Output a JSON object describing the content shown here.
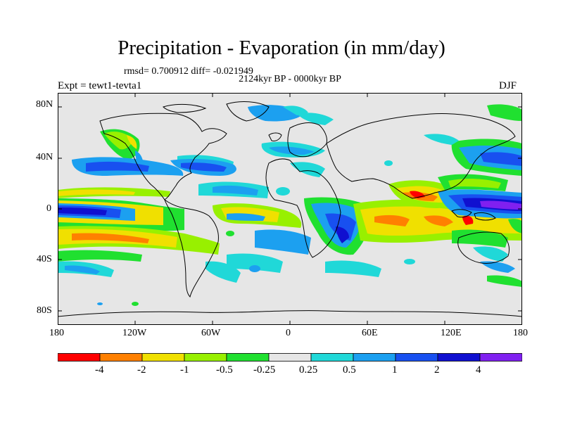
{
  "title": "Precipitation - Evaporation (in mm/day)",
  "stats": "rmsd= 0.700912 diff= -0.021949",
  "period": "2124kyr BP - 0000kyr BP",
  "experiment": "Expt = tewt1-tevta1",
  "season": "DJF",
  "axes": {
    "lat_ticks": [
      "80N",
      "40N",
      "0",
      "40S",
      "80S"
    ],
    "lon_ticks": [
      "180",
      "120W",
      "60W",
      "0",
      "60E",
      "120E",
      "180"
    ]
  },
  "colorbar": {
    "labels": [
      "-4",
      "-2",
      "-1",
      "-0.5",
      "-0.25",
      "0.25",
      "0.5",
      "1",
      "2",
      "4"
    ],
    "colors": [
      "#ff0000",
      "#ff8000",
      "#f0e000",
      "#98f000",
      "#20e030",
      "#e6e6e6",
      "#20d8d8",
      "#1ca0f0",
      "#1850f0",
      "#1010d0",
      "#8020f0"
    ]
  },
  "colors": {
    "background": "#e6e6e6",
    "coastline": "#000000"
  }
}
